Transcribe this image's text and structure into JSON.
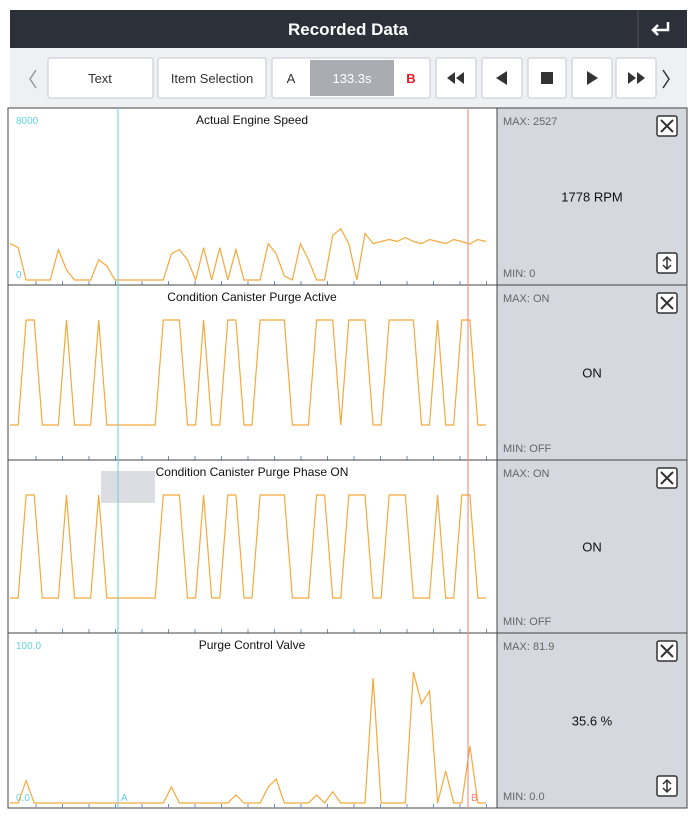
{
  "header": {
    "title": "Recorded Data"
  },
  "toolbar": {
    "text_button": "Text",
    "item_selection": "Item Selection",
    "marker_a": "A",
    "time": "133.3s",
    "marker_b": "B"
  },
  "cursors": {
    "a_label": "A",
    "b_label": "B"
  },
  "panels": [
    {
      "title": "Actual Engine Speed",
      "ylim": [
        0,
        8000
      ],
      "yticks": [
        0,
        8000
      ],
      "values": [
        1800,
        1600,
        0,
        0,
        0,
        0,
        1500,
        500,
        0,
        0,
        0,
        1000,
        700,
        0,
        0,
        0,
        0,
        0,
        0,
        0,
        1300,
        1500,
        1000,
        0,
        1600,
        0,
        1600,
        0,
        1500,
        0,
        0,
        0,
        1800,
        1300,
        200,
        0,
        1800,
        1000,
        0,
        0,
        2200,
        2527,
        1800,
        0,
        2300,
        1800,
        1900,
        2000,
        1900,
        2100,
        1900,
        1800,
        2000,
        1900,
        1800,
        2000,
        1900,
        1778,
        2000,
        1900
      ],
      "max": "MAX: 2527",
      "current": "1778 RPM",
      "min": "MIN: 0",
      "expand": true
    },
    {
      "title": "Condition Canister Purge Active",
      "ylim": [
        0,
        1
      ],
      "values": [
        0,
        0,
        1,
        1,
        0,
        0,
        0,
        1,
        0,
        0,
        0,
        1,
        0,
        0,
        0,
        0,
        0,
        0,
        0,
        1,
        1,
        1,
        0,
        0,
        1,
        0,
        0,
        1,
        1,
        0,
        0,
        1,
        1,
        1,
        1,
        0,
        0,
        0,
        1,
        1,
        1,
        0,
        1,
        1,
        1,
        0,
        0,
        1,
        1,
        1,
        1,
        0,
        0,
        1,
        0,
        0,
        1,
        1,
        0,
        0
      ],
      "max": "MAX: ON",
      "current": "ON",
      "min": "MIN: OFF",
      "expand": false
    },
    {
      "title": "Condition Canister Purge Phase ON",
      "ylim": [
        0,
        1
      ],
      "values": [
        0,
        0,
        1,
        1,
        0,
        0,
        0,
        1,
        0,
        0,
        0,
        1,
        0,
        0,
        0,
        0,
        0,
        0,
        0,
        1,
        1,
        1,
        0,
        0,
        1,
        0,
        0,
        1,
        1,
        0,
        0,
        1,
        1,
        1,
        1,
        0,
        0,
        0,
        1,
        1,
        0,
        0,
        1,
        1,
        1,
        0,
        0,
        1,
        1,
        1,
        0,
        0,
        0,
        1,
        0,
        0,
        1,
        1,
        0,
        0
      ],
      "max": "MAX: ON",
      "current": "ON",
      "min": "MIN: OFF",
      "expand": false
    },
    {
      "title": "Purge Control Valve",
      "ylim": [
        0,
        100
      ],
      "yticks": [
        {
          "value": 0,
          "label": "0.0"
        },
        {
          "value": 100,
          "label": "100.0"
        }
      ],
      "values": [
        0,
        0,
        14,
        0,
        0,
        0,
        0,
        0,
        0,
        0,
        0,
        0,
        0,
        0,
        0,
        0,
        0,
        0,
        0,
        0,
        10,
        0,
        0,
        0,
        0,
        0,
        0,
        0,
        5,
        0,
        0,
        0,
        10,
        15,
        0,
        0,
        0,
        0,
        5,
        0,
        7,
        0,
        0,
        0,
        0,
        78,
        0,
        0,
        0,
        0,
        82,
        62,
        70,
        0,
        20,
        0,
        0,
        35.6,
        0,
        0
      ],
      "max": "MAX: 81.9",
      "current": "35.6 %",
      "min": "MIN: 0.0",
      "expand": true
    }
  ]
}
